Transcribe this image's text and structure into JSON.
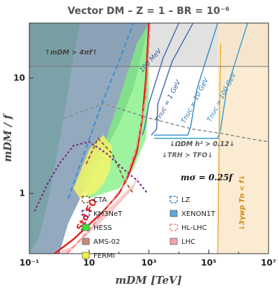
{
  "chart_data": {
    "type": "area",
    "title": "Vector DM  –  Z = 1 –  BR = 10⁻⁶",
    "xlabel": "mDM   [TeV]",
    "ylabel": "mDM / f",
    "x_scale": "log",
    "y_scale": "log",
    "xlim": [
      0.1,
      10000000
    ],
    "ylim": [
      0.3,
      30
    ],
    "x_ticks": [
      {
        "value": 0.1,
        "label": "10⁻¹"
      },
      {
        "value": 10,
        "label": "10"
      },
      {
        "value": 1000,
        "label": "10³"
      },
      {
        "value": 100000,
        "label": "10⁵"
      },
      {
        "value": 10000000,
        "label": "10⁷"
      }
    ],
    "y_ticks": [
      {
        "value": 1,
        "label": "1"
      },
      {
        "value": 10,
        "label": "10"
      }
    ],
    "ms_label": "mσ = 0.25f",
    "legend": [
      {
        "name": "CTA",
        "color": "#8b5a2b",
        "style": "dashed"
      },
      {
        "name": "LZ",
        "color": "#3a8fd1",
        "style": "dashed"
      },
      {
        "name": "KM3NeT",
        "color": "#7a2a8a",
        "style": "dashed"
      },
      {
        "name": "XENON1T",
        "color": "#5aa8d4",
        "style": "filled"
      },
      {
        "name": "HESS",
        "color": "#3ce03c",
        "style": "filled"
      },
      {
        "name": "HL-LHC",
        "color": "#f08a8a",
        "style": "dashed"
      },
      {
        "name": "AMS-02",
        "color": "#c88a7a",
        "style": "filled"
      },
      {
        "name": "LHC",
        "color": "#f4a6a6",
        "style": "filled"
      },
      {
        "name": "FERMI",
        "color": "#f0f040",
        "style": "filled"
      }
    ],
    "annotations": {
      "perturbativity": "↑mDM > 4πf↑",
      "tnuc_100mev": "100 MeV",
      "tnuc_1gev": "Tnuc = 1 GeV",
      "tnuc_10gev": "Tnuc = 10 GeV",
      "tnuc_100gev": "Tnuc = 100 GeV",
      "omega": "↓ΩDM h² > 0.12↓",
      "trh": "↓TRH > TFO↓",
      "wp": "↓3γwp Tn < f↓",
      "std_fo": "Std FO"
    },
    "regions": {
      "perturbativity_ylim": 12.6,
      "std_fo_curve": {
        "x": [
          0.7,
          3,
          30,
          100,
          200,
          400,
          600,
          800,
          1000
        ],
        "y": [
          0.3,
          0.4,
          0.7,
          1.0,
          1.4,
          2.3,
          4.5,
          10,
          30
        ]
      },
      "tnuc_contours": [
        {
          "label": "100 MeV",
          "x_start": 600,
          "x_vertical": 600
        },
        {
          "label": "1 GeV",
          "x_vertical": 1800
        },
        {
          "label": "10 GeV",
          "x_vertical": 25000
        },
        {
          "label": "100 GeV",
          "x_vertical": 250000
        }
      ],
      "wp_bound_x": 200000
    }
  }
}
